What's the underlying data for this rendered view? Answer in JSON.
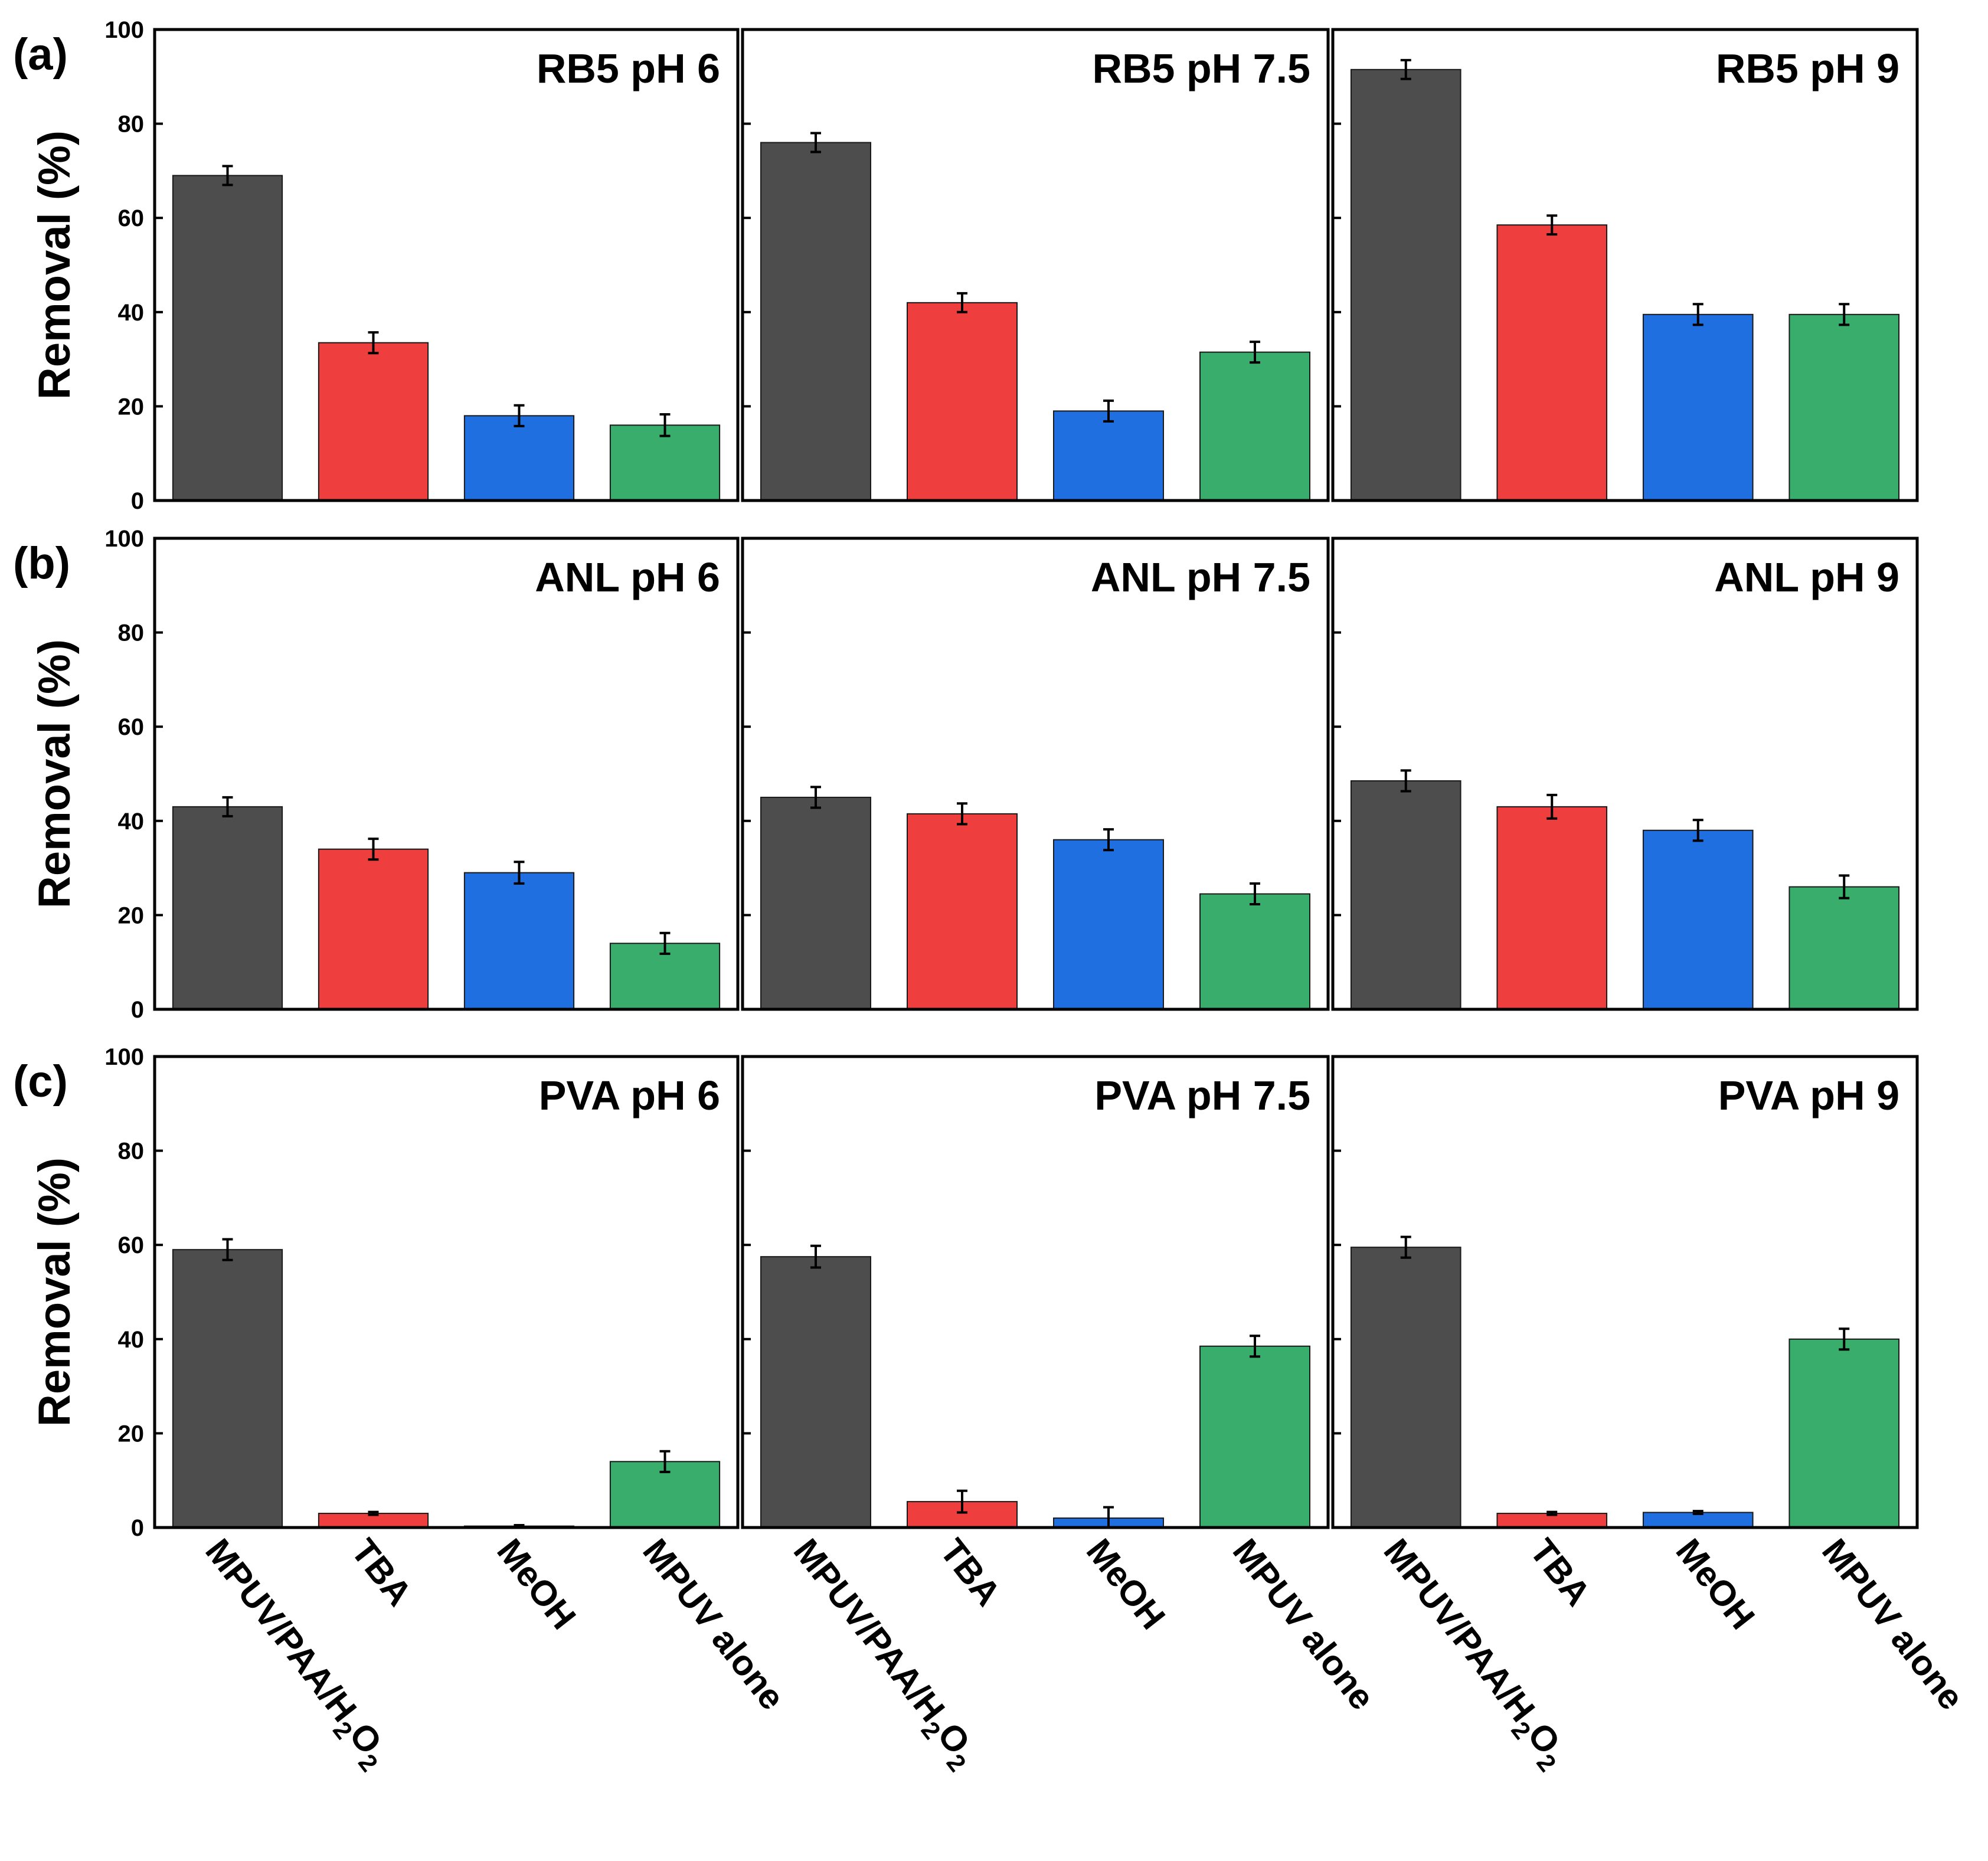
{
  "chart_data": {
    "type": "bar",
    "ylabel": "Removal (%)",
    "ylim": [
      0,
      100
    ],
    "yticks": [
      "0",
      "20",
      "40",
      "60",
      "80",
      "100"
    ],
    "categories": [
      {
        "name": "MPUV/PAA/H2O2",
        "main": "MPUV/PAA/H",
        "sub1": "2",
        "mid": "O",
        "sub2": "2"
      },
      {
        "name": "TBA",
        "main": "TBA"
      },
      {
        "name": "MeOH",
        "main": "MeOH"
      },
      {
        "name": "MPUV alone",
        "main": "MPUV alone"
      }
    ],
    "colors": [
      "#4d4d4d",
      "#ef3e3e",
      "#1f6fe0",
      "#38ad6c"
    ],
    "rows": [
      {
        "label": "(a)",
        "panels": [
          {
            "title": "RB5 pH 6",
            "values": [
              69,
              33.5,
              18,
              16
            ],
            "errors": [
              2,
              2.2,
              2.2,
              2.3
            ]
          },
          {
            "title": "RB5 pH 7.5",
            "values": [
              76,
              42,
              19,
              31.5
            ],
            "errors": [
              2,
              2,
              2.2,
              2.2
            ]
          },
          {
            "title": "RB5 pH 9",
            "values": [
              91.5,
              58.5,
              39.5,
              39.5
            ],
            "errors": [
              2,
              2,
              2.2,
              2.2
            ]
          }
        ]
      },
      {
        "label": "(b)",
        "panels": [
          {
            "title": "ANL pH 6",
            "values": [
              43,
              34,
              29,
              14
            ],
            "errors": [
              2,
              2.2,
              2.3,
              2.2
            ]
          },
          {
            "title": "ANL pH 7.5",
            "values": [
              45,
              41.5,
              36,
              24.5
            ],
            "errors": [
              2.2,
              2.2,
              2.2,
              2.2
            ]
          },
          {
            "title": "ANL pH 9",
            "values": [
              48.5,
              43,
              38,
              26
            ],
            "errors": [
              2.2,
              2.5,
              2.2,
              2.4
            ]
          }
        ]
      },
      {
        "label": "(c)",
        "panels": [
          {
            "title": "PVA pH 6",
            "values": [
              59,
              3,
              0.3,
              14
            ],
            "errors": [
              2.2,
              0.3,
              0.2,
              2.2
            ]
          },
          {
            "title": "PVA pH 7.5",
            "values": [
              57.5,
              5.5,
              2,
              38.5
            ],
            "errors": [
              2.3,
              2.3,
              2.3,
              2.2
            ]
          },
          {
            "title": "PVA  pH 9",
            "values": [
              59.5,
              3,
              3.2,
              40
            ],
            "errors": [
              2.2,
              0.3,
              0.3,
              2.2
            ]
          }
        ]
      }
    ]
  }
}
